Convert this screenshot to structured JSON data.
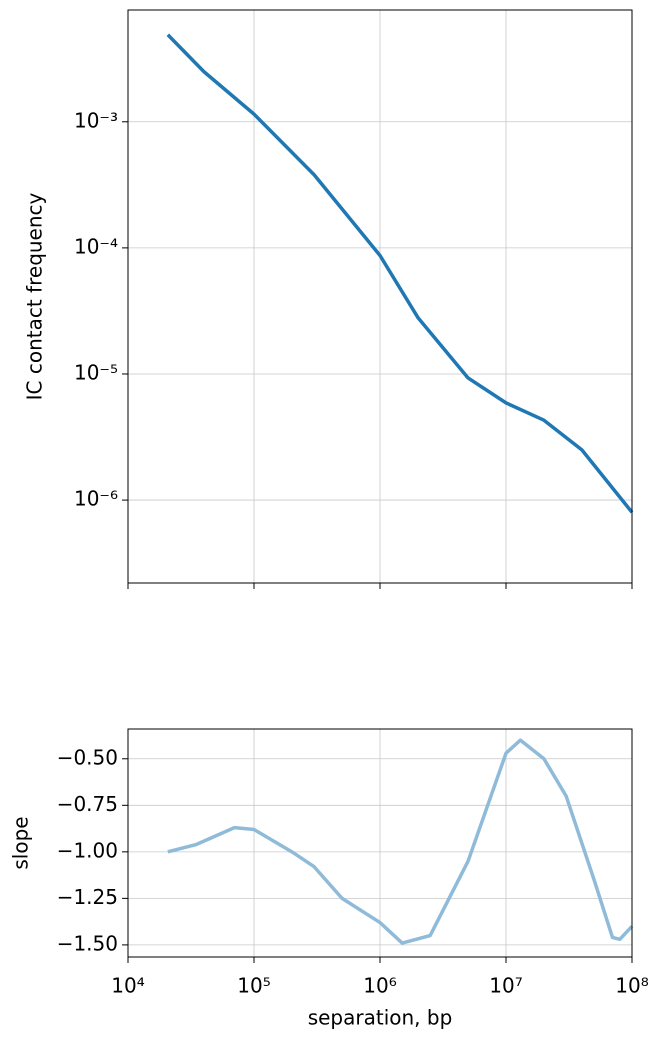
{
  "chart_data": [
    {
      "type": "line",
      "ylabel": "IC contact frequency",
      "xlog": true,
      "ylog": true,
      "grid": true,
      "color": "#1f77b4",
      "x": [
        20700,
        40000,
        100000,
        300000,
        1000000,
        2000000,
        5000000,
        10000000,
        20000000,
        40000000,
        100000000
      ],
      "values": [
        0.0049,
        0.0025,
        0.00115,
        0.00038,
        8.7e-05,
        2.8e-05,
        9.3e-06,
        5.9e-06,
        4.3e-06,
        2.5e-06,
        8e-07
      ],
      "xlim": [
        10000,
        100000000
      ],
      "ylim": [
        2.2e-07,
        0.0077
      ],
      "xticks": [
        10000,
        100000,
        1000000,
        10000000,
        100000000
      ],
      "yticks": [
        {
          "value": 1e-06,
          "label": "10⁻⁶"
        },
        {
          "value": 1e-05,
          "label": "10⁻⁵"
        },
        {
          "value": 0.0001,
          "label": "10⁻⁴"
        },
        {
          "value": 0.001,
          "label": "10⁻³"
        }
      ]
    },
    {
      "type": "line",
      "xlabel": "separation, bp",
      "ylabel": "slope",
      "xlog": true,
      "ylog": false,
      "grid": true,
      "color": "#8fbbd9",
      "x": [
        20700,
        35000,
        70000,
        100000,
        200000,
        300000,
        500000,
        1000000,
        1500000,
        2500000,
        5000000,
        10000000,
        13000000,
        20000000,
        30000000,
        50000000,
        70000000,
        80000000,
        100000000
      ],
      "values": [
        -1.0,
        -0.96,
        -0.87,
        -0.88,
        -1.0,
        -1.08,
        -1.25,
        -1.38,
        -1.49,
        -1.45,
        -1.05,
        -0.47,
        -0.4,
        -0.5,
        -0.7,
        -1.15,
        -1.46,
        -1.47,
        -1.4
      ],
      "xlim": [
        10000,
        100000000
      ],
      "ylim": [
        -1.565,
        -0.34
      ],
      "xticks": [
        {
          "value": 10000,
          "label": "10⁴"
        },
        {
          "value": 100000,
          "label": "10⁵"
        },
        {
          "value": 1000000,
          "label": "10⁶"
        },
        {
          "value": 10000000,
          "label": "10⁷"
        },
        {
          "value": 100000000,
          "label": "10⁸"
        }
      ],
      "yticks": [
        {
          "value": -1.5,
          "label": "−1.50"
        },
        {
          "value": -1.25,
          "label": "−1.25"
        },
        {
          "value": -1.0,
          "label": "−1.00"
        },
        {
          "value": -0.75,
          "label": "−0.75"
        },
        {
          "value": -0.5,
          "label": "−0.50"
        }
      ]
    }
  ]
}
